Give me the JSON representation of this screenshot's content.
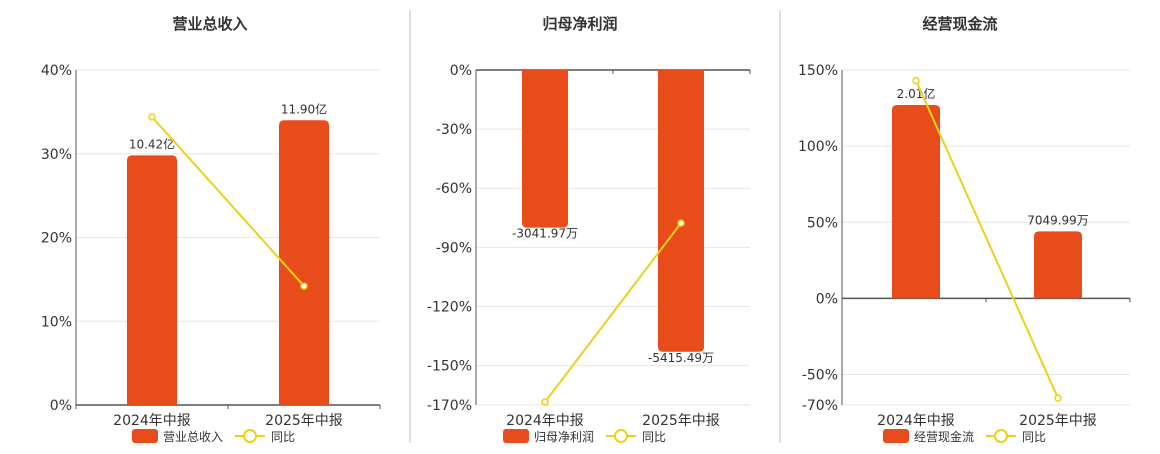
{
  "colors": {
    "bar": "#E84C1A",
    "line": "#EFD018",
    "grid": "#E6E6E6",
    "axis": "#555555",
    "separator": "#BFBFBF",
    "text": "#333333"
  },
  "chart_data": [
    {
      "type": "bar",
      "title": "营业总收入",
      "categories": [
        "2024年中报",
        "2025年中报"
      ],
      "series": [
        {
          "name": "营业总收入",
          "type": "bar",
          "values": [
            29.8,
            34.0
          ],
          "labels": [
            "10.42亿",
            "11.90亿"
          ]
        },
        {
          "name": "同比",
          "type": "line",
          "values": [
            34.4,
            14.2
          ]
        }
      ],
      "yticks": [
        "40%",
        "30%",
        "20%",
        "10%",
        "0%"
      ],
      "ylim": [
        0,
        40
      ],
      "ytick_values": [
        40,
        30,
        20,
        10,
        0
      ],
      "legend": "bottom"
    },
    {
      "type": "bar",
      "title": "归母净利润",
      "categories": [
        "2024年中报",
        "2025年中报"
      ],
      "series": [
        {
          "name": "归母净利润",
          "type": "bar",
          "values": [
            -80,
            -143
          ],
          "labels": [
            "-3041.97万",
            "-5415.49万"
          ]
        },
        {
          "name": "同比",
          "type": "line",
          "values": [
            -168.5,
            -77.7
          ]
        }
      ],
      "yticks": [
        "0%",
        "-30%",
        "-60%",
        "-90%",
        "-120%",
        "-150%",
        "-170%"
      ],
      "ylim": [
        -170,
        0
      ],
      "ytick_values": [
        0,
        -30,
        -60,
        -90,
        -120,
        -150,
        -170
      ],
      "legend": "bottom"
    },
    {
      "type": "bar",
      "title": "经营现金流",
      "categories": [
        "2024年中报",
        "2025年中报"
      ],
      "series": [
        {
          "name": "经营现金流",
          "type": "bar",
          "values": [
            127,
            44
          ],
          "labels": [
            "2.01亿",
            "7049.99万"
          ]
        },
        {
          "name": "同比",
          "type": "line",
          "values": [
            143,
            -65.5
          ]
        }
      ],
      "yticks": [
        "150%",
        "100%",
        "50%",
        "0%",
        "-50%",
        "-70%"
      ],
      "ylim": [
        -70,
        150
      ],
      "ytick_values": [
        150,
        100,
        50,
        0,
        -50,
        -70
      ],
      "legend": "bottom"
    }
  ]
}
